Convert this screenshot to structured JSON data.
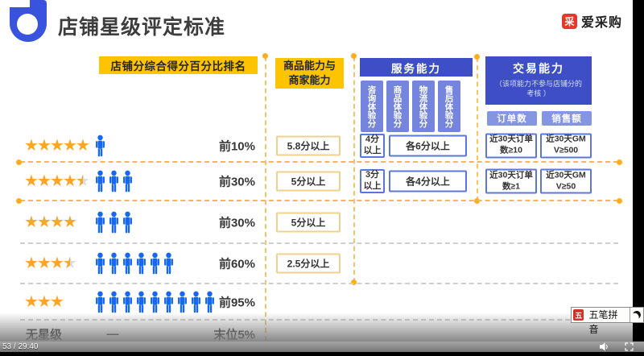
{
  "title": "店铺星级评定标准",
  "brand": {
    "icon_glyph": "采",
    "name": "爱采购"
  },
  "headers": {
    "rank": "店铺分综合得分百分比排名",
    "product_line1": "商品能力与",
    "product_line2": "商家能力",
    "service": "服务能力",
    "service_subs": [
      "咨询体验分",
      "商品体验分",
      "物流体验分",
      "售后体验分"
    ],
    "trade": "交易能力",
    "trade_note": "（该项能力不参与店铺分的考核 ）",
    "trade_subs": [
      "订单数",
      "销售额"
    ]
  },
  "rows": [
    {
      "stars": 5,
      "persons": 1,
      "rank": "前10%",
      "product": "5.8分以上",
      "service_single": "4分以上",
      "service_all": "各6分以上",
      "trade_orders": "近30天订单数≥10",
      "trade_gmv": "近30天GMV≥500",
      "highlight": true
    },
    {
      "stars": 4.5,
      "persons": 3,
      "rank": "前30%",
      "product": "5分以上",
      "service_single": "3分以上",
      "service_all": "各4分以上",
      "trade_orders": "近30天订单数≥1",
      "trade_gmv": "近30天GMV≥50",
      "highlight": true
    },
    {
      "stars": 4,
      "persons": 3,
      "rank": "前30%",
      "product": "5分以上",
      "highlight": false
    },
    {
      "stars": 3.5,
      "persons": 6,
      "rank": "前60%",
      "product": "2.5分以上",
      "highlight": false
    },
    {
      "stars": 3,
      "persons": 9,
      "rank": "前95%",
      "highlight": false
    },
    {
      "stars": 0,
      "no_star_label": "无星级",
      "dash": "—",
      "rank": "末位5%",
      "highlight": false
    }
  ],
  "player": {
    "time": "53 / 29:40"
  },
  "ime": {
    "icon_glyph": "五",
    "label": "五笔拼音"
  },
  "colors": {
    "accent_yellow": "#FFC400",
    "deep_blue": "#3D4EC6",
    "periwinkle": "#7585DD",
    "light_periwinkle": "#8495E2",
    "person_blue": "#1668F0",
    "star_gold": "#F9A62B",
    "brand_red": "#E6382A",
    "box_border_blue": "#5C77D9",
    "box_border_gold": "#F0D18C"
  }
}
